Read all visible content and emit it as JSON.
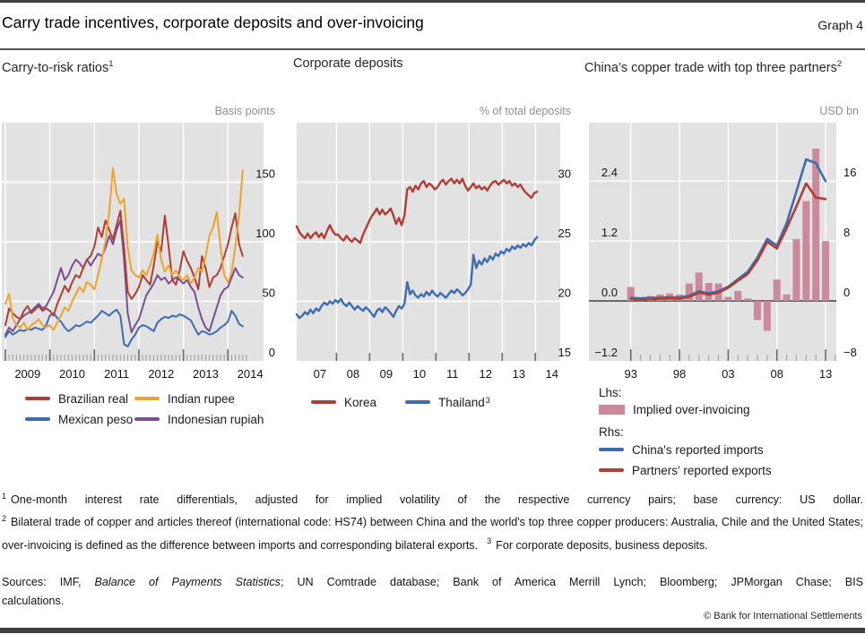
{
  "header": {
    "title": "Carry trade incentives, corporate deposits and over-invoicing",
    "graph_label": "Graph 4"
  },
  "chart_data": [
    {
      "type": "line",
      "title": "Carry-to-risk ratios",
      "title_sup": "1",
      "unit": "Basis points",
      "bg": "#e2e2e2",
      "xlim": [
        2008.92,
        2014.8
      ],
      "ylim": [
        0,
        200
      ],
      "ygrid": [
        50,
        100,
        150
      ],
      "xgrid": [
        2009,
        2010,
        2011,
        2012,
        2013,
        2014
      ],
      "xticks_major": [
        2009,
        2010,
        2011,
        2012,
        2013,
        2014
      ],
      "major_tick": 13,
      "xminor": {
        "start": 2009.0833,
        "end": 2014.42,
        "step": 0.083333
      },
      "ylabels": [
        {
          "v": 0,
          "t": "0"
        },
        {
          "v": 50,
          "t": "50"
        },
        {
          "v": 100,
          "t": "100"
        },
        {
          "v": 150,
          "t": "150"
        }
      ],
      "xlabels": [
        {
          "x": 2009.5,
          "t": "2009"
        },
        {
          "x": 2010.5,
          "t": "2010"
        },
        {
          "x": 2011.5,
          "t": "2011"
        },
        {
          "x": 2012.5,
          "t": "2012"
        },
        {
          "x": 2013.5,
          "t": "2013"
        },
        {
          "x": 2014.5,
          "t": "2014"
        }
      ],
      "line_width": 2,
      "draw_order": [
        1,
        3,
        0,
        2
      ],
      "series": [
        {
          "name": "Brazilian real",
          "color": "#b03e35",
          "x0": 2009.0,
          "dx": 0.083333,
          "values": [
            30,
            44,
            40,
            37,
            35,
            42,
            46,
            40,
            43,
            46,
            42,
            44,
            42,
            38,
            48,
            55,
            63,
            58,
            66,
            72,
            70,
            78,
            85,
            88,
            96,
            112,
            104,
            118,
            110,
            102,
            114,
            126,
            95,
            58,
            52,
            56,
            62,
            72,
            68,
            64,
            80,
            100,
            92,
            122,
            96,
            68,
            64,
            76,
            92,
            84,
            78,
            70,
            60,
            88,
            78,
            62,
            70,
            72,
            78,
            88,
            98,
            112,
            124,
            98,
            88
          ]
        },
        {
          "name": "Mexican peso",
          "color": "#3c6db0",
          "x0": 2009.0,
          "dx": 0.083333,
          "values": [
            20,
            25,
            22,
            24,
            26,
            25,
            27,
            26,
            28,
            27,
            26,
            30,
            38,
            40,
            36,
            33,
            28,
            25,
            27,
            30,
            29,
            31,
            33,
            32,
            35,
            38,
            42,
            40,
            38,
            41,
            43,
            38,
            14,
            12,
            18,
            22,
            28,
            30,
            29,
            27,
            25,
            32,
            35,
            37,
            36,
            38,
            37,
            39,
            38,
            36,
            34,
            28,
            22,
            25,
            24,
            22,
            23,
            25,
            28,
            30,
            33,
            42,
            38,
            31,
            29
          ]
        },
        {
          "name": "Indian rupee",
          "color": "#eea32c",
          "x0": 2009.0,
          "dx": 0.083333,
          "values": [
            48,
            56,
            36,
            30,
            28,
            32,
            26,
            30,
            32,
            35,
            30,
            28,
            30,
            26,
            32,
            38,
            45,
            42,
            50,
            56,
            62,
            58,
            66,
            64,
            60,
            72,
            86,
            100,
            125,
            162,
            140,
            132,
            136,
            95,
            76,
            72,
            70,
            76,
            72,
            80,
            90,
            106,
            85,
            75,
            80,
            72,
            76,
            70,
            68,
            72,
            65,
            70,
            78,
            75,
            88,
            105,
            112,
            125,
            96,
            72,
            66,
            74,
            96,
            122,
            160
          ]
        },
        {
          "name": "Indonesian rupiah",
          "color": "#7a4f92",
          "x0": 2009.0,
          "dx": 0.083333,
          "values": [
            22,
            28,
            25,
            30,
            35,
            38,
            40,
            42,
            45,
            48,
            44,
            46,
            52,
            58,
            68,
            78,
            68,
            72,
            80,
            85,
            82,
            78,
            85,
            80,
            85,
            90,
            88,
            95,
            105,
            98,
            110,
            118,
            85,
            40,
            24,
            30,
            35,
            45,
            55,
            60,
            65,
            72,
            68,
            70,
            65,
            68,
            70,
            68,
            65,
            68,
            62,
            58,
            45,
            35,
            28,
            25,
            35,
            45,
            55,
            60,
            62,
            70,
            78,
            72,
            70
          ]
        }
      ]
    },
    {
      "type": "line",
      "title": "Corporate deposits",
      "title_sup": "",
      "unit": "% of total deposits",
      "bg": "#e2e2e2",
      "xlim": [
        2006.8,
        2014.75
      ],
      "ylim": [
        15,
        35
      ],
      "ygrid": [
        20,
        25,
        30
      ],
      "xgrid": [
        2008,
        2009,
        2010,
        2011,
        2012,
        2013,
        2014
      ],
      "xticks_major": [
        2008,
        2009,
        2010,
        2011,
        2012,
        2013,
        2014
      ],
      "major_tick": 9,
      "ylabels": [
        {
          "v": 15,
          "t": "15"
        },
        {
          "v": 20,
          "t": "20"
        },
        {
          "v": 25,
          "t": "25"
        },
        {
          "v": 30,
          "t": "30"
        }
      ],
      "xlabels": [
        {
          "x": 2007.5,
          "t": "07"
        },
        {
          "x": 2008.5,
          "t": "08"
        },
        {
          "x": 2009.5,
          "t": "09"
        },
        {
          "x": 2010.5,
          "t": "10"
        },
        {
          "x": 2011.5,
          "t": "11"
        },
        {
          "x": 2012.5,
          "t": "12"
        },
        {
          "x": 2013.5,
          "t": "13"
        },
        {
          "x": 2014.5,
          "t": "14"
        }
      ],
      "line_width": 2.4,
      "draw_order": [
        1,
        0
      ],
      "series": [
        {
          "name": "Korea",
          "color": "#b03e35",
          "x0": 2006.8,
          "dx": 0.083333,
          "values": [
            26.3,
            25.8,
            25.5,
            25.3,
            25.7,
            25.3,
            25.6,
            25.8,
            25.4,
            25.7,
            25.3,
            25.9,
            26.4,
            25.9,
            25.6,
            25.6,
            25.3,
            25.1,
            25.5,
            25.2,
            25.0,
            25.3,
            25.1,
            24.9,
            25.6,
            26.1,
            26.6,
            27.1,
            27.4,
            27.8,
            27.3,
            27.7,
            27.3,
            27.5,
            27.8,
            27.2,
            26.5,
            27.0,
            26.4,
            27.2,
            29.4,
            29.6,
            29.2,
            29.7,
            29.4,
            29.9,
            30.1,
            29.6,
            29.9,
            29.7,
            29.4,
            29.6,
            30.0,
            30.2,
            29.8,
            30.1,
            30.3,
            29.9,
            30.2,
            29.9,
            30.3,
            29.7,
            29.3,
            29.6,
            29.9,
            29.5,
            29.7,
            29.4,
            29.6,
            29.3,
            29.7,
            30.0,
            30.1,
            29.8,
            30.0,
            30.2,
            29.9,
            30.1,
            29.7,
            29.9,
            29.6,
            29.8,
            29.4,
            29.1,
            28.9,
            28.7,
            29.1,
            29.2
          ]
        },
        {
          "name": "Thailand",
          "sup": "3",
          "color": "#3c6db0",
          "x0": 2006.8,
          "dx": 0.083333,
          "values": [
            18.9,
            18.6,
            18.8,
            19.1,
            18.9,
            19.3,
            19.0,
            19.4,
            19.2,
            19.6,
            19.9,
            19.7,
            20.0,
            19.8,
            20.1,
            19.9,
            20.2,
            19.8,
            19.6,
            19.9,
            19.6,
            19.3,
            19.6,
            19.4,
            19.2,
            19.5,
            19.3,
            19.0,
            18.7,
            19.2,
            19.4,
            19.1,
            19.5,
            19.3,
            19.0,
            18.7,
            19.2,
            19.6,
            19.4,
            19.8,
            21.6,
            20.6,
            20.9,
            20.5,
            20.3,
            20.6,
            20.4,
            20.8,
            20.5,
            20.9,
            20.6,
            20.4,
            20.7,
            20.5,
            20.3,
            20.6,
            20.9,
            20.7,
            21.0,
            20.8,
            20.5,
            20.7,
            21.0,
            21.4,
            23.9,
            22.8,
            23.4,
            23.1,
            23.6,
            23.3,
            23.8,
            23.5,
            24.0,
            23.8,
            24.2,
            24.0,
            24.4,
            24.2,
            24.6,
            24.4,
            24.7,
            24.5,
            24.8,
            24.6,
            24.9,
            24.7,
            25.1,
            25.4
          ]
        }
      ]
    },
    {
      "type": "bar+line",
      "title": "China’s copper trade with top three partners",
      "title_sup": "2",
      "unit": "USD bn",
      "bg": "#e2e2e2",
      "xlim": [
        1988.7,
        2014.1
      ],
      "ylim_left": [
        -1.2,
        3.57
      ],
      "ylim_right": [
        -8,
        23.8
      ],
      "ygrid": [
        1.2,
        2.4
      ],
      "zero_line": 0,
      "xgrid": [
        1993,
        1998,
        2003,
        2008,
        2013
      ],
      "xticks_major": [
        1993,
        1998,
        2003,
        2008,
        2013
      ],
      "major_tick": 13,
      "xminor": {
        "start": 1993,
        "end": 2014,
        "step": 1
      },
      "ylabels_left": [
        {
          "v": 2.4,
          "t": "2.4"
        },
        {
          "v": 1.2,
          "t": "1.2"
        },
        {
          "v": 0,
          "t": "0.0"
        },
        {
          "v": -1.2,
          "t": "−1.2"
        }
      ],
      "ylabels_right": [
        {
          "v": 16,
          "t": "16"
        },
        {
          "v": 8,
          "t": "8"
        },
        {
          "v": 0,
          "t": "0"
        },
        {
          "v": -8,
          "t": "−8"
        }
      ],
      "xlabels": [
        {
          "x": 1993,
          "t": "93"
        },
        {
          "x": 1998,
          "t": "98"
        },
        {
          "x": 2003,
          "t": "03"
        },
        {
          "x": 2008,
          "t": "08"
        },
        {
          "x": 2013,
          "t": "13"
        }
      ],
      "line_width": 2.6,
      "legend": {
        "lhs": "Lhs:",
        "rhs": "Rhs:"
      },
      "bars": {
        "name": "Implied over-invoicing",
        "color": "#ca8a9b",
        "axis": "left",
        "x0": 1993,
        "dx": 1,
        "width": 8,
        "values": [
          0.28,
          0.05,
          0.1,
          0.13,
          0.15,
          0.13,
          0.35,
          0.57,
          0.36,
          0.35,
          0.08,
          0.2,
          0.05,
          -0.38,
          -0.6,
          0.43,
          0.13,
          1.24,
          2.0,
          3.05,
          1.2
        ]
      },
      "series": [
        {
          "name": "China's reported imports",
          "color": "#3c6db0",
          "axis": "right",
          "x0": 1993,
          "dx": 1,
          "values": [
            0.4,
            0.35,
            0.4,
            0.45,
            0.5,
            0.45,
            0.7,
            1.3,
            1.0,
            1.3,
            1.9,
            2.9,
            3.9,
            5.8,
            8.3,
            7.4,
            10.4,
            14.6,
            18.9,
            18.4,
            16.0
          ]
        },
        {
          "name": "Partners' reported exports",
          "color": "#b03e35",
          "axis": "right",
          "x0": 1993,
          "dx": 1,
          "values": [
            0.25,
            0.2,
            0.25,
            0.3,
            0.35,
            0.3,
            0.55,
            1.1,
            0.85,
            1.1,
            1.75,
            2.7,
            3.6,
            5.4,
            7.9,
            7.0,
            9.7,
            12.6,
            15.7,
            13.8,
            13.6
          ]
        }
      ]
    }
  ],
  "footnotes": [
    {
      "marker": "1",
      "text": "One-month interest rate differentials, adjusted for implied volatility of the respective currency pairs; base currency: US dollar."
    },
    {
      "marker": "2",
      "text": "Bilateral trade of copper and articles thereof (international code: HS74) between China and the world's top three copper producers: Australia, Chile and the United States; over-invoicing is defined as the difference between imports and corresponding bilateral exports."
    },
    {
      "marker": "3",
      "text": "For corporate deposits, business deposits."
    }
  ],
  "sources": {
    "prefix": "Sources: IMF, ",
    "italic": "Balance of Payments Statistics",
    "suffix": "; UN Comtrade database; Bank of America Merrill Lynch; Bloomberg; JPMorgan Chase; BIS",
    "line2": "calculations."
  },
  "copyright": "© Bank for International Settlements"
}
